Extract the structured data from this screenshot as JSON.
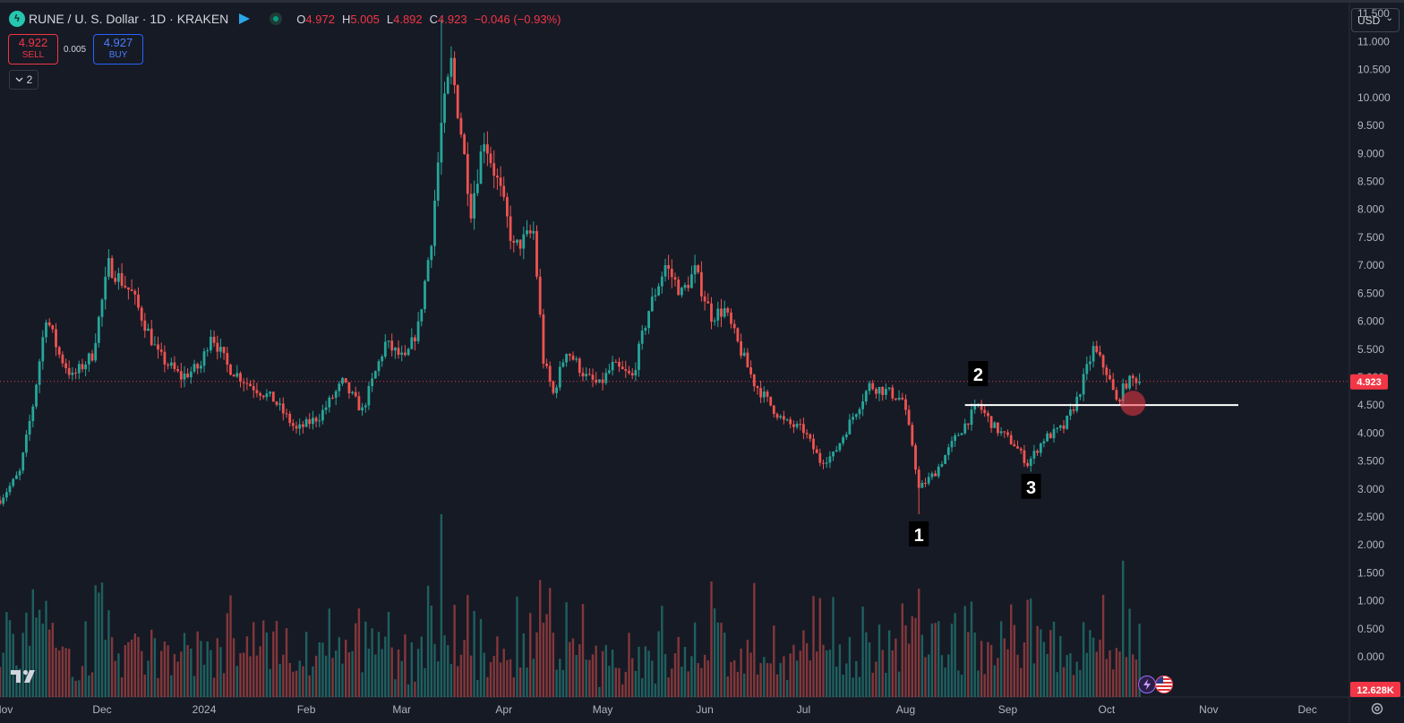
{
  "header": {
    "symbol": "RUNE / U. S. Dollar · 1D · KRAKEN",
    "ohlc": [
      {
        "k": "O",
        "v": "4.972"
      },
      {
        "k": "H",
        "v": "5.005"
      },
      {
        "k": "L",
        "v": "4.892"
      },
      {
        "k": "C",
        "v": "4.923"
      }
    ],
    "change": "−0.046 (−0.93%)"
  },
  "trade": {
    "sell_price": "4.922",
    "sell_label": "SELL",
    "spread": "0.005",
    "buy_price": "4.927",
    "buy_label": "BUY"
  },
  "indicators_collapsed": {
    "count": "2"
  },
  "currency": {
    "selected": "USD"
  },
  "last_price_label": "4.923",
  "volume_label": "12.628K",
  "icons": [
    "rune-coin-icon",
    "flag-icon",
    "market-status-icon",
    "chevron-down-icon",
    "tradingview-logo-icon",
    "settings-icon",
    "lightning-icon",
    "us-flag-icon"
  ],
  "colors": {
    "background": "#161a25",
    "up": "#26a69a",
    "down": "#ef5350",
    "last_price": "#f23645",
    "annotation_line": "#ffffff"
  },
  "chart_data": {
    "type": "candlestick",
    "timeframe": "1D",
    "y_axis": {
      "ticks": [
        "11.500",
        "11.000",
        "10.500",
        "10.000",
        "9.500",
        "9.000",
        "8.500",
        "8.000",
        "7.500",
        "7.000",
        "6.500",
        "6.000",
        "5.500",
        "5.000",
        "4.500",
        "4.000",
        "3.500",
        "3.000",
        "2.500",
        "2.000",
        "1.500",
        "1.000",
        "0.500",
        "0.000"
      ],
      "range": [
        -0.72,
        11.68
      ]
    },
    "x_axis": {
      "ticks": [
        "Nov",
        "Dec",
        "2024",
        "Feb",
        "Mar",
        "Apr",
        "May",
        "Jun",
        "Jul",
        "Aug",
        "Sep",
        "Oct",
        "Nov",
        "Dec"
      ],
      "range": [
        "2023-10-31",
        "2024-12-14"
      ]
    },
    "price_path": [
      [
        "2023-10-31",
        2.8
      ],
      [
        "2023-11-06",
        3.3
      ],
      [
        "2023-11-10",
        4.5
      ],
      [
        "2023-11-14",
        6.1
      ],
      [
        "2023-11-18",
        5.4
      ],
      [
        "2023-11-22",
        5.0
      ],
      [
        "2023-11-28",
        5.4
      ],
      [
        "2023-12-03",
        7.0
      ],
      [
        "2023-12-10",
        6.5
      ],
      [
        "2023-12-18",
        5.4
      ],
      [
        "2023-12-25",
        5.0
      ],
      [
        "2023-12-31",
        5.2
      ],
      [
        "2024-01-03",
        5.8
      ],
      [
        "2024-01-08",
        5.2
      ],
      [
        "2024-01-14",
        4.9
      ],
      [
        "2024-01-22",
        4.6
      ],
      [
        "2024-01-29",
        4.05
      ],
      [
        "2024-02-05",
        4.3
      ],
      [
        "2024-02-12",
        4.9
      ],
      [
        "2024-02-18",
        4.4
      ],
      [
        "2024-02-25",
        5.6
      ],
      [
        "2024-03-02",
        5.3
      ],
      [
        "2024-03-06",
        5.9
      ],
      [
        "2024-03-10",
        7.5
      ],
      [
        "2024-03-13",
        9.5
      ],
      [
        "2024-03-16",
        10.6
      ],
      [
        "2024-03-19",
        9.4
      ],
      [
        "2024-03-22",
        8.0
      ],
      [
        "2024-03-26",
        9.3
      ],
      [
        "2024-03-31",
        8.3
      ],
      [
        "2024-04-04",
        7.3
      ],
      [
        "2024-04-10",
        7.6
      ],
      [
        "2024-04-13",
        5.3
      ],
      [
        "2024-04-16",
        4.7
      ],
      [
        "2024-04-20",
        5.5
      ],
      [
        "2024-04-26",
        5.0
      ],
      [
        "2024-04-30",
        4.85
      ],
      [
        "2024-05-04",
        5.2
      ],
      [
        "2024-05-10",
        5.0
      ],
      [
        "2024-05-15",
        6.2
      ],
      [
        "2024-05-20",
        7.0
      ],
      [
        "2024-05-25",
        6.5
      ],
      [
        "2024-05-29",
        6.9
      ],
      [
        "2024-06-03",
        6.1
      ],
      [
        "2024-06-07",
        6.2
      ],
      [
        "2024-06-11",
        5.6
      ],
      [
        "2024-06-16",
        4.9
      ],
      [
        "2024-06-21",
        4.5
      ],
      [
        "2024-06-25",
        4.2
      ],
      [
        "2024-07-01",
        4.05
      ],
      [
        "2024-07-06",
        3.5
      ],
      [
        "2024-07-10",
        3.6
      ],
      [
        "2024-07-16",
        4.3
      ],
      [
        "2024-07-21",
        4.85
      ],
      [
        "2024-07-26",
        4.75
      ],
      [
        "2024-07-31",
        4.6
      ],
      [
        "2024-08-03",
        3.8
      ],
      [
        "2024-08-05",
        3.0
      ],
      [
        "2024-08-10",
        3.3
      ],
      [
        "2024-08-16",
        3.9
      ],
      [
        "2024-08-23",
        4.5
      ],
      [
        "2024-08-28",
        4.1
      ],
      [
        "2024-09-03",
        3.8
      ],
      [
        "2024-09-07",
        3.45
      ],
      [
        "2024-09-12",
        3.9
      ],
      [
        "2024-09-18",
        4.1
      ],
      [
        "2024-09-22",
        4.6
      ],
      [
        "2024-09-27",
        5.5
      ],
      [
        "2024-10-01",
        5.1
      ],
      [
        "2024-10-04",
        4.55
      ],
      [
        "2024-10-07",
        4.9
      ],
      [
        "2024-10-10",
        4.97
      ],
      [
        "2024-10-11",
        4.923
      ]
    ],
    "swings": {
      "high": {
        "date": "2024-03-13",
        "value": 11.4
      },
      "low": {
        "date": "2024-08-05",
        "value": 2.55
      }
    },
    "volume_peak": 2.55,
    "last_price": 4.923,
    "annotations": [
      {
        "label": "1",
        "date": "2024-08-05",
        "value": 2.55
      },
      {
        "label": "2",
        "date": "2024-08-23",
        "value": 4.55
      },
      {
        "label": "3",
        "date": "2024-09-07",
        "value": 3.4
      }
    ],
    "horizontal_line": {
      "value": 4.5,
      "from": "2024-08-19",
      "to": "2024-11-10"
    },
    "highlight": {
      "date": "2024-10-09",
      "value": 4.5
    }
  }
}
